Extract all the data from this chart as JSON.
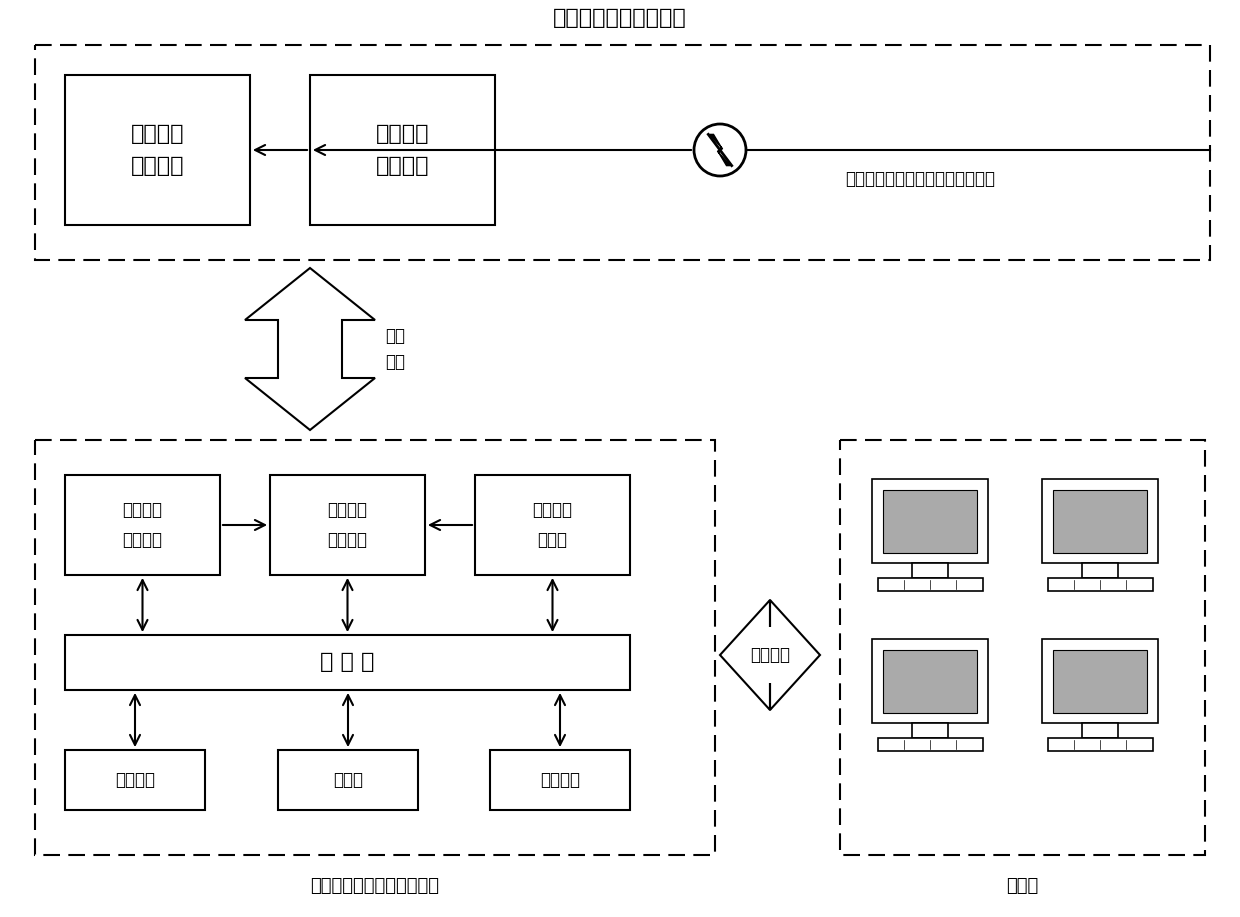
{
  "title_top": "海底电缆温度检测前端",
  "title_bottom_left": "海底电缆温度监测处理中心",
  "title_user": "用户端",
  "label_network1": "传输\n网络",
  "label_network2": "传输网络",
  "label_fiber": "海底电缆温度检测分布式传感光纤",
  "box1_text": "温度检测\n前端装置",
  "box2_text": "光电复合\n光纤抽取",
  "box3_text": "标准温度\n测试曲线",
  "box4_text": "温度监测\n模式识别",
  "box5_text": "海缆路由\n走廊图",
  "box6_text": "服 务 器",
  "box7_text": "报警系统",
  "box8_text": "数据库",
  "box9_text": "视频监控",
  "bg_color": "#ffffff",
  "text_color": "#000000",
  "font_size": 14,
  "font_size_small": 12,
  "font_size_large": 16
}
